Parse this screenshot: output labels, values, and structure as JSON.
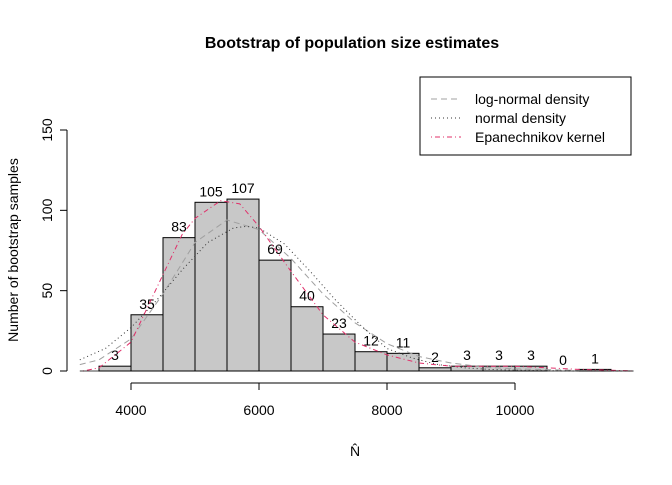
{
  "chart_data": {
    "type": "bar",
    "title": "Bootstrap of population size estimates",
    "xlabel": "N̂",
    "ylabel": "Number of bootstrap samples",
    "xlim": [
      3200,
      11850
    ],
    "ylim": [
      0,
      150
    ],
    "xticks": [
      4000,
      6000,
      8000,
      10000
    ],
    "yticks": [
      0,
      50,
      100,
      150
    ],
    "grid": false,
    "legend_position": "top-right",
    "bin_edges": [
      3500,
      4000,
      4500,
      5000,
      5500,
      6000,
      6500,
      7000,
      7500,
      8000,
      8500,
      9000,
      9500,
      10000,
      10500,
      11000,
      11500
    ],
    "counts": [
      3,
      35,
      83,
      105,
      107,
      69,
      40,
      23,
      12,
      11,
      2,
      3,
      3,
      3,
      0,
      1
    ],
    "bar_color": "#c8c8c8",
    "series": [
      {
        "name": "log-normal density",
        "color": "#a0a0a0",
        "dash": "dashed",
        "x": [
          3200,
          3500,
          4000,
          4500,
          5000,
          5500,
          6000,
          6500,
          7000,
          7500,
          8000,
          8500,
          9000,
          9500,
          10000,
          11000,
          11850
        ],
        "y": [
          4,
          7,
          20,
          48,
          80,
          94,
          88,
          70,
          48,
          30,
          17,
          9,
          5,
          2.5,
          1.3,
          0.3,
          0
        ]
      },
      {
        "name": "normal density",
        "color": "#333333",
        "dash": "dotted",
        "x": [
          3200,
          3600,
          4000,
          4400,
          4800,
          5200,
          5600,
          5800,
          6000,
          6400,
          6800,
          7200,
          7600,
          8000,
          8400,
          8800,
          9200,
          9600,
          10000,
          10500,
          11000,
          11850
        ],
        "y": [
          7,
          14,
          27,
          44,
          63,
          80,
          89,
          90,
          89,
          79,
          62,
          44,
          28,
          14,
          8,
          4,
          2,
          1,
          0.5,
          0.2,
          0,
          0
        ]
      },
      {
        "name": "Epanechnikov kernel",
        "color": "#e0306a",
        "dash": "dashdot",
        "x": [
          3250,
          3500,
          4000,
          4500,
          4800,
          5000,
          5400,
          5700,
          6000,
          6500,
          7000,
          7500,
          8000,
          8500,
          9000,
          9500,
          10000,
          10500,
          11000,
          11500,
          11850
        ],
        "y": [
          0,
          2,
          18,
          60,
          85,
          95,
          106,
          104,
          90,
          62,
          35,
          18,
          10,
          5,
          3,
          3,
          3,
          2,
          1,
          0.5,
          0
        ]
      }
    ]
  }
}
